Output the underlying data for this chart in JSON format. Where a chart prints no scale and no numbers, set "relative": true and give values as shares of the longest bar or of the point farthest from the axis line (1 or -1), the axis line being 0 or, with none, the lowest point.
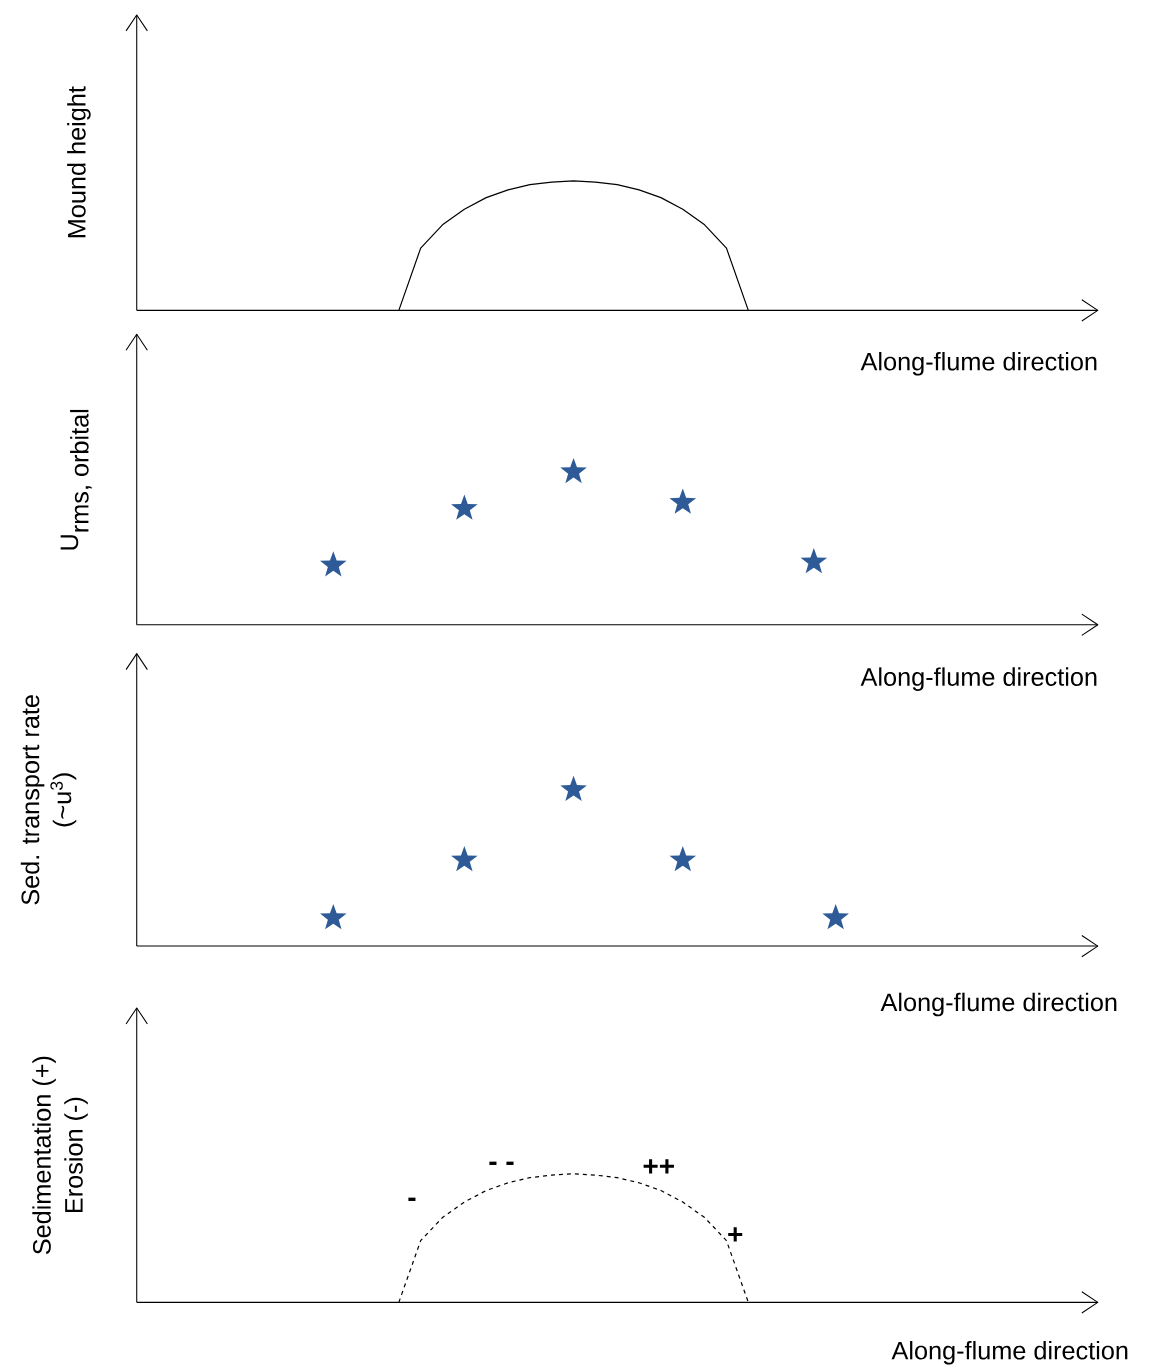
{
  "chart_data": [
    {
      "type": "line",
      "relative": true,
      "ylabel": "Mound height",
      "xlabel": "Along-flume direction",
      "color": "#000000",
      "line_style": "solid",
      "categories": [
        null,
        null,
        null,
        null,
        null,
        null,
        null,
        null,
        null,
        null,
        null,
        null,
        null,
        null,
        null,
        null,
        null,
        null,
        null,
        null,
        null,
        null,
        null,
        null,
        null,
        null,
        null,
        null,
        null,
        null,
        null,
        null,
        null,
        null,
        null,
        null,
        null,
        null,
        null,
        null,
        null,
        null,
        null
      ],
      "values": [
        null,
        null,
        null,
        null,
        null,
        null,
        null,
        null,
        null,
        null,
        null,
        0,
        0.48,
        0.66,
        0.78,
        0.87,
        0.93,
        0.97,
        0.99,
        1,
        0.99,
        0.97,
        0.93,
        0.87,
        0.78,
        0.66,
        0.48,
        0,
        null,
        null,
        null,
        null,
        null,
        null,
        null,
        null,
        null,
        null,
        null,
        null,
        null,
        null,
        null
      ]
    },
    {
      "type": "scatter",
      "relative": true,
      "ylabel": "\\textnormal{U}_{\\textnormal{rms, orbital}}",
      "xlabel": "Along-flume direction",
      "color": "#2e5b97",
      "marker": "star",
      "categories": [
        null,
        null,
        null,
        null,
        null,
        null,
        null,
        null,
        null,
        null,
        null,
        null,
        null,
        null,
        null,
        null,
        null,
        null,
        null,
        null,
        null,
        null,
        null,
        null,
        null,
        null,
        null,
        null,
        null,
        null,
        null,
        null,
        null,
        null,
        null,
        null,
        null,
        null,
        null,
        null,
        null,
        null,
        null
      ],
      "values": [
        null,
        null,
        null,
        null,
        null,
        null,
        null,
        null,
        0.39,
        null,
        null,
        null,
        null,
        null,
        0.76,
        null,
        null,
        null,
        null,
        1,
        null,
        null,
        null,
        null,
        0.8,
        null,
        null,
        null,
        null,
        null,
        0.41,
        null,
        null,
        null,
        null,
        null,
        null,
        null,
        null,
        null,
        null,
        null,
        null
      ]
    },
    {
      "type": "scatter",
      "relative": true,
      "ylabel": "Sed. transport rate (~u$^{3}$)",
      "xlabel": "Along-flume direction",
      "color": "#2e5b97",
      "marker": "star",
      "categories": [
        null,
        null,
        null,
        null,
        null,
        null,
        null,
        null,
        null,
        null,
        null,
        null,
        null,
        null,
        null,
        null,
        null,
        null,
        null,
        null,
        null,
        null,
        null,
        null,
        null,
        null,
        null,
        null,
        null,
        null,
        null,
        null,
        null,
        null,
        null,
        null,
        null,
        null,
        null,
        null,
        null,
        null,
        null
      ],
      "values": [
        null,
        null,
        null,
        null,
        null,
        null,
        null,
        null,
        0.18,
        null,
        null,
        null,
        null,
        null,
        0.55,
        null,
        null,
        null,
        null,
        1,
        null,
        null,
        null,
        null,
        0.55,
        null,
        null,
        null,
        null,
        null,
        null,
        0.18,
        null,
        null,
        null,
        null,
        null,
        null,
        null,
        null,
        null,
        null,
        null
      ]
    },
    {
      "type": "line",
      "relative": true,
      "ylabel": "Sedimentation (+) Erosion (-)",
      "xlabel": "Along-flume direction",
      "color": "#000000",
      "line_style": "dashed",
      "categories": [
        null,
        null,
        null,
        null,
        null,
        null,
        null,
        null,
        null,
        null,
        null,
        null,
        null,
        null,
        null,
        null,
        null,
        null,
        null,
        null,
        null,
        null,
        null,
        null,
        null,
        null,
        null,
        null,
        null,
        null,
        null,
        null,
        null,
        null,
        null,
        null,
        null,
        null,
        null,
        null,
        null,
        null,
        null
      ],
      "values": [
        null,
        null,
        null,
        null,
        null,
        null,
        null,
        null,
        null,
        null,
        null,
        0,
        0.48,
        0.66,
        0.78,
        0.87,
        0.93,
        0.97,
        0.99,
        1,
        0.99,
        0.97,
        0.93,
        0.87,
        0.78,
        0.66,
        0.48,
        0,
        null,
        null,
        null,
        null,
        null,
        null,
        null,
        null,
        null,
        null,
        null,
        null,
        null,
        null,
        null
      ],
      "annotations": [
        "-",
        "- -",
        "++",
        "+"
      ]
    }
  ]
}
